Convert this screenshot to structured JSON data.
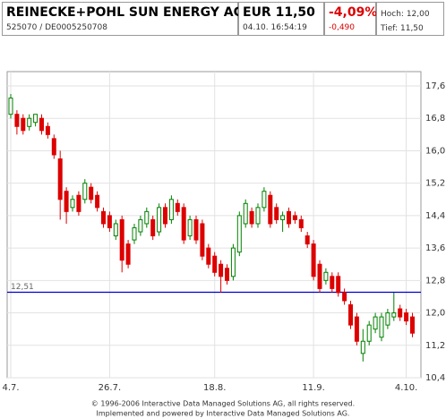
{
  "header": {
    "name": "REINECKE+POHL SUN ENERGY AG I...",
    "ids": "525070  /  DE0005250708",
    "price": "EUR 11,50",
    "time": "04.10.  16:54:19",
    "change_pct": "-4,09%",
    "change_abs": "-0,490",
    "high": "Hoch: 12,00",
    "low": "Tief: 11,50"
  },
  "chart_data": {
    "type": "candlestick",
    "categories": [
      "4.7.",
      null,
      null,
      null,
      null,
      null,
      null,
      null,
      null,
      null,
      null,
      null,
      null,
      null,
      null,
      null,
      "26.7.",
      null,
      null,
      null,
      null,
      null,
      null,
      null,
      null,
      null,
      null,
      null,
      null,
      null,
      null,
      null,
      null,
      "18.8.",
      null,
      null,
      null,
      null,
      null,
      null,
      null,
      null,
      null,
      null,
      null,
      null,
      null,
      null,
      null,
      "11.9.",
      null,
      null,
      null,
      null,
      null,
      null,
      null,
      null,
      null,
      null,
      null,
      null,
      null,
      null,
      "4.10.",
      null
    ],
    "open": [
      16.9,
      16.9,
      16.8,
      16.6,
      16.7,
      16.8,
      16.6,
      16.3,
      15.8,
      15.0,
      14.6,
      14.9,
      14.8,
      15.1,
      14.9,
      14.5,
      14.4,
      13.9,
      14.3,
      13.7,
      13.8,
      14.0,
      14.2,
      14.3,
      14.0,
      14.6,
      14.3,
      14.7,
      14.6,
      13.9,
      14.3,
      14.2,
      13.6,
      13.4,
      13.2,
      13.1,
      12.9,
      13.5,
      14.2,
      14.5,
      14.2,
      14.6,
      14.9,
      14.6,
      14.3,
      14.5,
      14.4,
      14.3,
      13.9,
      13.7,
      13.2,
      12.8,
      12.9,
      12.9,
      12.5,
      12.2,
      11.9,
      11.0,
      11.3,
      11.6,
      11.4,
      11.7,
      11.9,
      12.1,
      12.0,
      11.9
    ],
    "high": [
      17.4,
      17.0,
      16.9,
      16.9,
      16.9,
      16.9,
      16.7,
      16.4,
      16.0,
      15.1,
      14.9,
      15.0,
      15.3,
      15.2,
      15.0,
      14.6,
      14.5,
      14.3,
      14.4,
      13.8,
      14.2,
      14.4,
      14.6,
      14.4,
      14.7,
      14.7,
      14.9,
      14.8,
      14.7,
      14.4,
      14.4,
      14.3,
      13.7,
      13.5,
      13.3,
      13.2,
      13.7,
      14.5,
      14.8,
      14.6,
      14.7,
      15.1,
      15.0,
      14.7,
      14.5,
      14.6,
      14.5,
      14.4,
      14.0,
      13.8,
      13.3,
      13.1,
      13.0,
      13.0,
      12.6,
      12.3,
      12.0,
      11.6,
      11.8,
      12.0,
      12.0,
      12.1,
      12.5,
      12.2,
      12.1,
      12.0
    ],
    "low": [
      16.8,
      16.4,
      16.4,
      16.5,
      16.6,
      16.4,
      16.3,
      15.8,
      14.3,
      14.2,
      14.5,
      14.4,
      14.7,
      14.7,
      14.5,
      14.1,
      14.0,
      13.8,
      13.0,
      13.1,
      13.7,
      13.9,
      14.1,
      13.8,
      13.9,
      14.1,
      14.2,
      14.4,
      13.7,
      13.8,
      13.7,
      13.3,
      13.1,
      12.9,
      12.5,
      12.7,
      12.8,
      13.4,
      14.1,
      14.1,
      14.1,
      14.5,
      14.1,
      14.2,
      14.0,
      14.1,
      14.2,
      14.0,
      13.6,
      12.8,
      12.5,
      12.7,
      12.5,
      12.4,
      12.2,
      11.6,
      11.2,
      10.8,
      11.2,
      11.5,
      11.3,
      11.6,
      11.8,
      11.8,
      11.7,
      11.4
    ],
    "close": [
      17.3,
      16.6,
      16.5,
      16.8,
      16.9,
      16.5,
      16.4,
      15.9,
      14.8,
      14.5,
      14.8,
      14.5,
      15.2,
      14.8,
      14.6,
      14.2,
      14.1,
      14.2,
      13.3,
      13.2,
      14.1,
      14.3,
      14.5,
      13.9,
      14.6,
      14.2,
      14.8,
      14.5,
      13.8,
      14.3,
      13.8,
      13.4,
      13.2,
      13.0,
      12.9,
      12.8,
      13.6,
      14.4,
      14.7,
      14.2,
      14.6,
      15.0,
      14.2,
      14.3,
      14.4,
      14.2,
      14.3,
      14.1,
      13.7,
      12.9,
      12.6,
      13.0,
      12.6,
      12.5,
      12.3,
      11.7,
      11.3,
      11.3,
      11.7,
      11.9,
      11.9,
      12.0,
      12.0,
      11.9,
      11.8,
      11.5
    ],
    "up_color": "#008000",
    "down_color": "#dd0000",
    "ylim": [
      10.4,
      17.6
    ],
    "yticks": [
      {
        "value": 17.6,
        "label": "17,6"
      },
      {
        "value": 16.8,
        "label": "16,8"
      },
      {
        "value": 16.0,
        "label": "16,0"
      },
      {
        "value": 15.2,
        "label": "15,2"
      },
      {
        "value": 14.4,
        "label": "14,4"
      },
      {
        "value": 13.6,
        "label": "13,6"
      },
      {
        "value": 12.8,
        "label": "12,8"
      },
      {
        "value": 12.0,
        "label": "12,0"
      },
      {
        "value": 11.2,
        "label": "11,2"
      },
      {
        "value": 10.4,
        "label": "10,4"
      }
    ],
    "reference_line": {
      "value": 12.51,
      "label": "12,51",
      "color": "#0000cc"
    },
    "grid": true
  },
  "footer": [
    "© 1996-2006 Interactive Data Managed Solutions AG, all rights reserved.",
    "Implemented and powered by Interactive Data Managed Solutions AG."
  ]
}
